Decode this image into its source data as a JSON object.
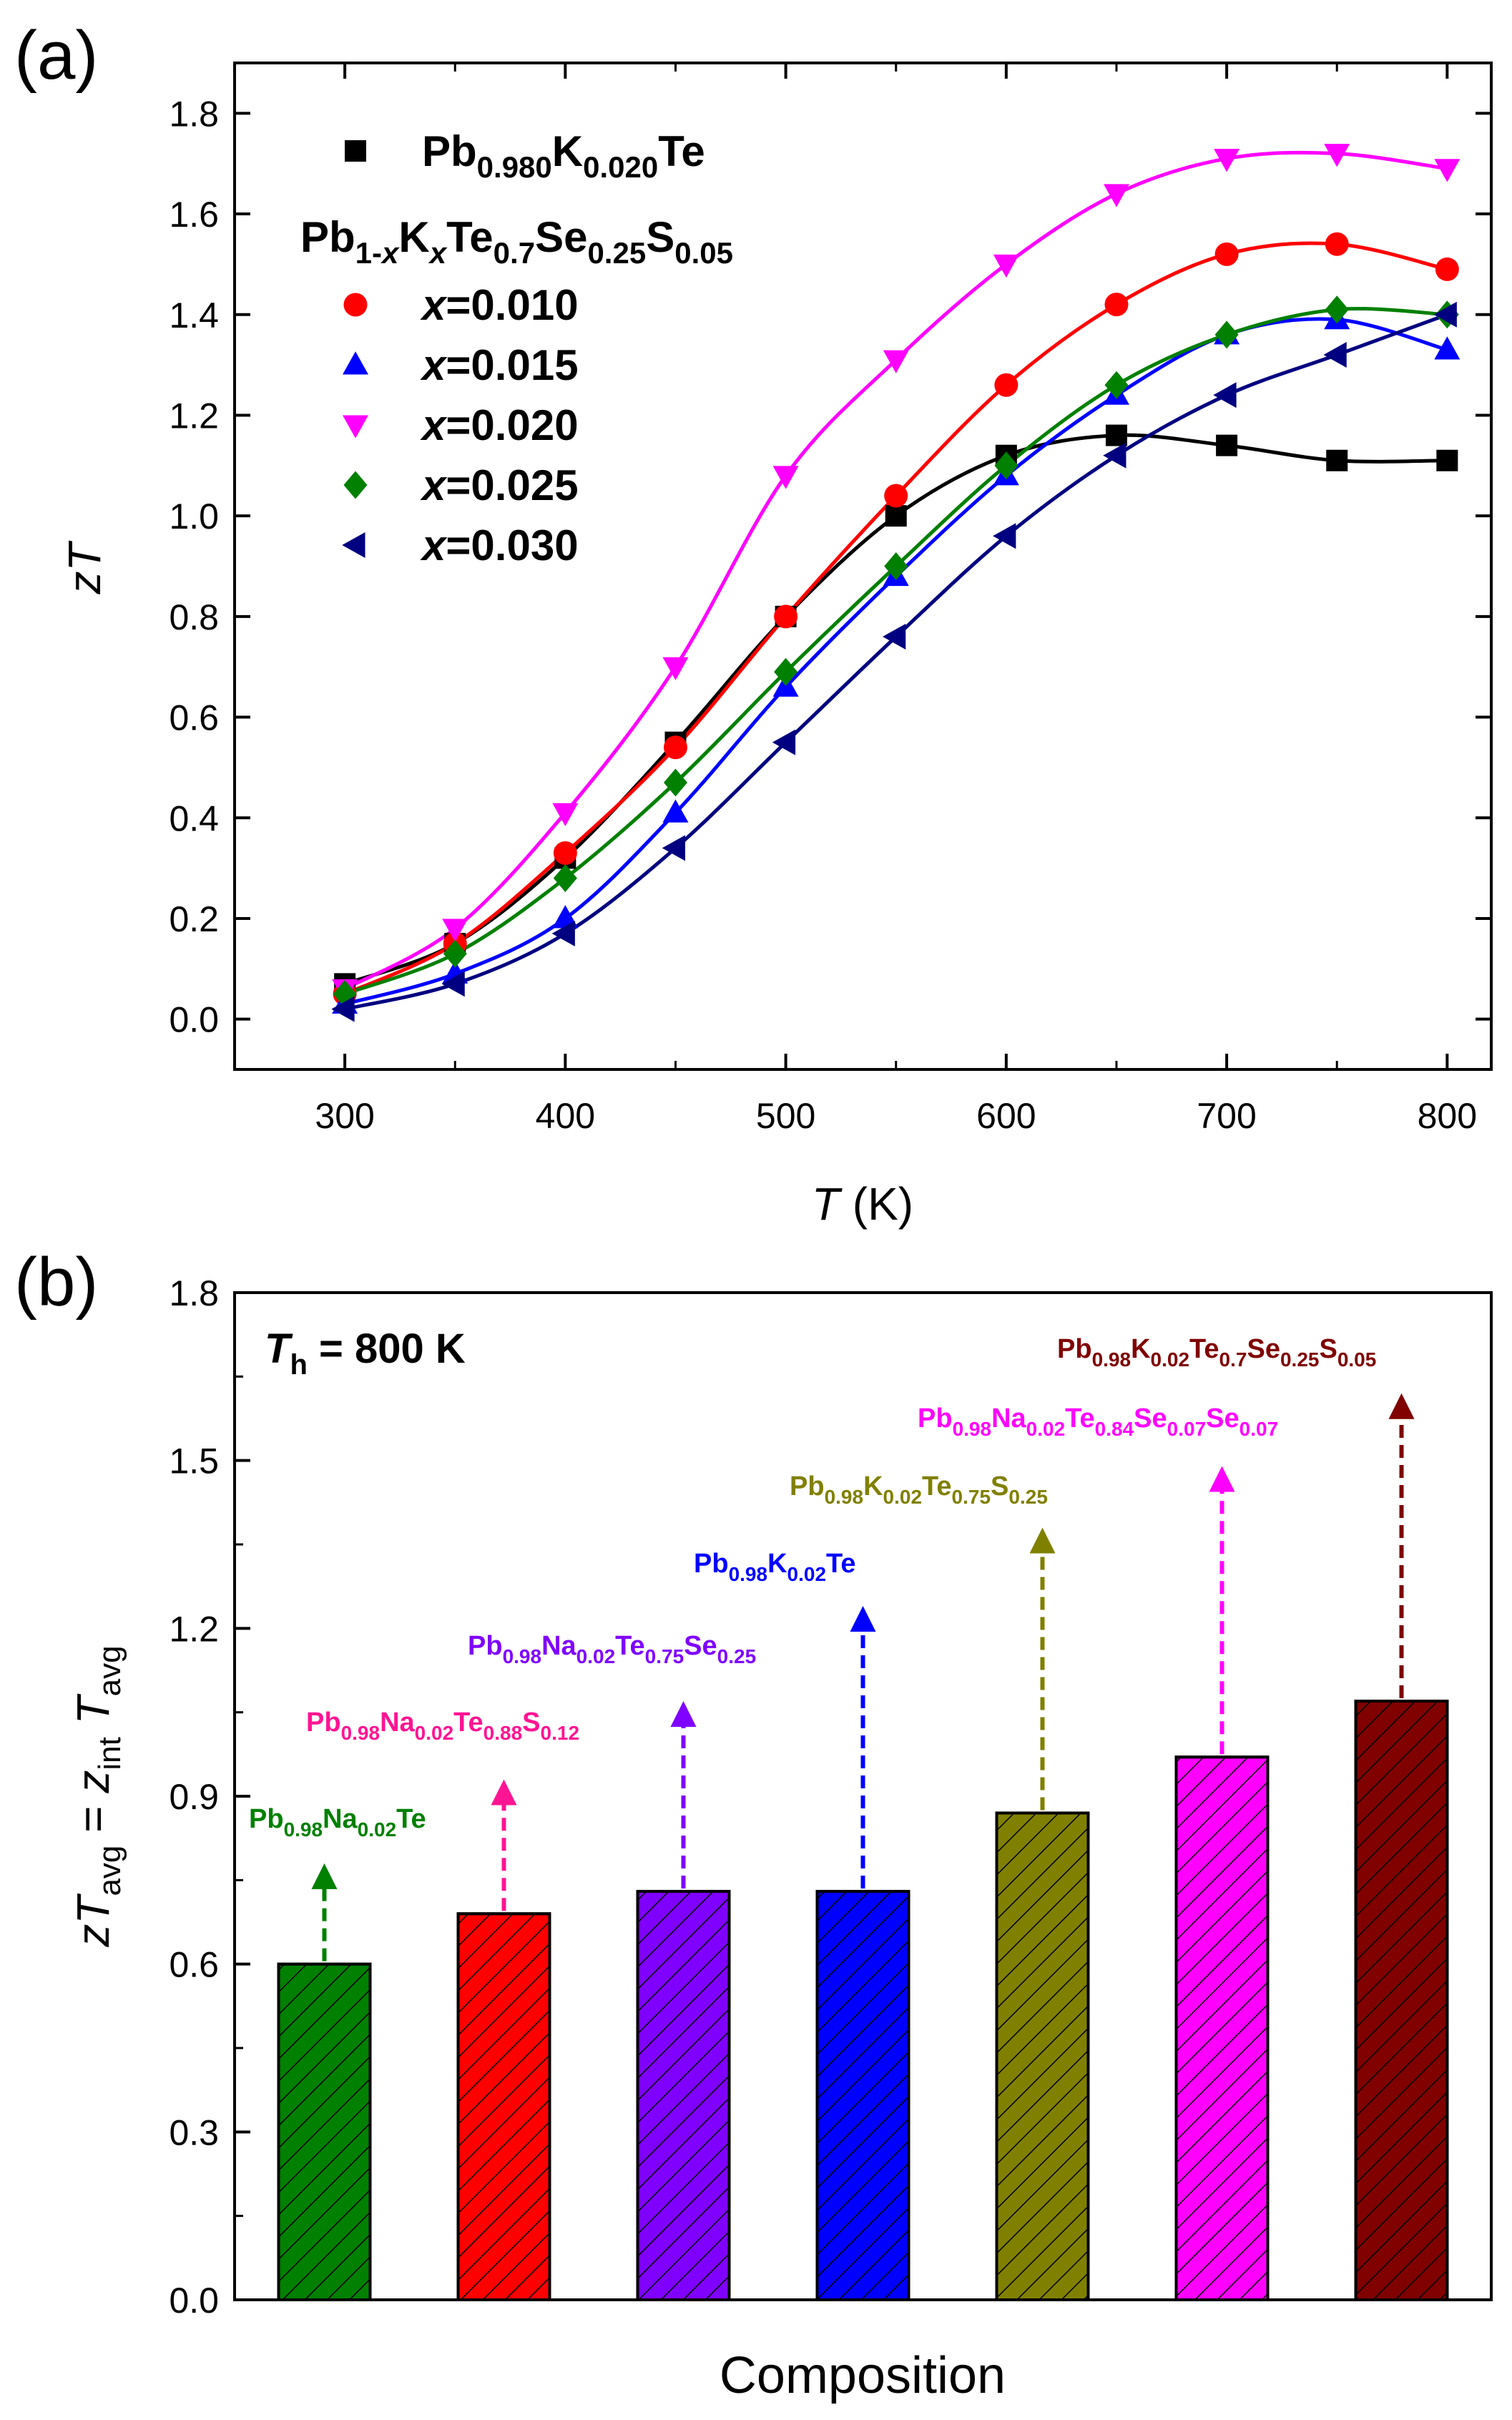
{
  "chart_data": [
    {
      "panel_label": "(a)",
      "type": "line",
      "xlabel": "T (K)",
      "ylabel": "zT",
      "xlim": [
        250,
        820
      ],
      "ylim": [
        -0.1,
        1.9
      ],
      "x_ticks": [
        300,
        400,
        500,
        600,
        700,
        800
      ],
      "y_ticks": [
        0.0,
        0.2,
        0.4,
        0.6,
        0.8,
        1.0,
        1.2,
        1.4,
        1.6,
        1.8
      ],
      "x": [
        300,
        350,
        400,
        450,
        500,
        550,
        600,
        650,
        700,
        750,
        800
      ],
      "legend_header": "Pb1-xKxTe0.7Se0.25S0.05",
      "series": [
        {
          "name": "Pb0.980K0.020Te",
          "marker": "square",
          "color": "#000000",
          "values": [
            0.07,
            0.15,
            0.32,
            0.55,
            0.8,
            1.0,
            1.12,
            1.16,
            1.14,
            1.11,
            1.11
          ]
        },
        {
          "name": "x=0.010",
          "marker": "circle",
          "color": "#ff0000",
          "values": [
            0.05,
            0.15,
            0.33,
            0.54,
            0.8,
            1.04,
            1.26,
            1.42,
            1.52,
            1.54,
            1.49
          ]
        },
        {
          "name": "x=0.015",
          "marker": "triangle-up",
          "color": "#0000ff",
          "values": [
            0.03,
            0.09,
            0.2,
            0.41,
            0.66,
            0.88,
            1.08,
            1.24,
            1.36,
            1.39,
            1.33
          ]
        },
        {
          "name": "x=0.020",
          "marker": "triangle-down",
          "color": "#ff00ff",
          "values": [
            0.06,
            0.18,
            0.41,
            0.7,
            1.08,
            1.31,
            1.5,
            1.64,
            1.71,
            1.72,
            1.69
          ]
        },
        {
          "name": "x=0.025",
          "marker": "diamond",
          "color": "#008000",
          "values": [
            0.05,
            0.13,
            0.28,
            0.47,
            0.69,
            0.9,
            1.1,
            1.26,
            1.36,
            1.41,
            1.4
          ]
        },
        {
          "name": "x=0.030",
          "marker": "triangle-left",
          "color": "#000080",
          "values": [
            0.02,
            0.07,
            0.17,
            0.34,
            0.55,
            0.76,
            0.96,
            1.12,
            1.24,
            1.32,
            1.4
          ]
        }
      ]
    },
    {
      "panel_label": "(b)",
      "type": "bar",
      "xlabel": "Composition",
      "ylabel": "zTavg = zint Tavg",
      "ylim": [
        0,
        1.8
      ],
      "y_ticks": [
        0.0,
        0.3,
        0.6,
        0.9,
        1.2,
        1.5,
        1.8
      ],
      "annotation": "Th = 800 K",
      "categories": [
        "Pb0.98Na0.02Te",
        "Pb0.98Na0.02Te0.88S0.12",
        "Pb0.98Na0.02Te0.75Se0.25",
        "Pb0.98K0.02Te",
        "Pb0.98K0.02Te0.75S0.25",
        "Pb0.98Na0.02Te0.84Se0.07Se0.07",
        "Pb0.98K0.02Te0.7Se0.25S0.05"
      ],
      "values": [
        0.6,
        0.69,
        0.73,
        0.73,
        0.87,
        0.97,
        1.07
      ],
      "arrow_tip_values": [
        0.78,
        0.93,
        1.07,
        1.24,
        1.38,
        1.49,
        1.62
      ],
      "colors": [
        "#008000",
        "#ff0000",
        "#7f00ff",
        "#0000ff",
        "#808000",
        "#ff00ff",
        "#800000"
      ],
      "label_colors": [
        "#008000",
        "#ff1493",
        "#7f00ff",
        "#0000ff",
        "#808000",
        "#ff00ff",
        "#800000"
      ]
    }
  ]
}
